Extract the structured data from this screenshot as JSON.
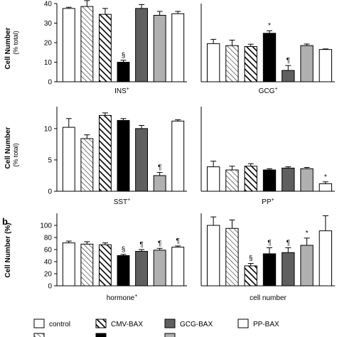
{
  "conditions": [
    {
      "key": "control",
      "label": "control",
      "fill": "#ffffff",
      "pattern": "none"
    },
    {
      "key": "hatch",
      "label": "",
      "fill": "#ffffff",
      "pattern": "thin-hatch"
    },
    {
      "key": "cmv",
      "label": "CMV-BAX",
      "fill": "#ffffff",
      "pattern": "thick-hatch"
    },
    {
      "key": "ins",
      "label": "",
      "fill": "#000000",
      "pattern": "none"
    },
    {
      "key": "gcg",
      "label": "GCG-BAX",
      "fill": "#5f5f5f",
      "pattern": "none"
    },
    {
      "key": "sst",
      "label": "",
      "fill": "#b0b0b0",
      "pattern": "none"
    },
    {
      "key": "pp",
      "label": "PP-BAX",
      "fill": "#ffffff",
      "pattern": "none"
    }
  ],
  "chart_data": [
    {
      "type": "bar",
      "id": "ins",
      "panel_letter": "",
      "xlabel": "INS",
      "xlabel_sup": "+",
      "ylabel": "Cell Number",
      "ylabel_sub": "(% total)",
      "ylim": [
        0,
        40
      ],
      "yticks": [
        0,
        10,
        20,
        30,
        40
      ],
      "values": [
        37.5,
        38.5,
        34.5,
        10.0,
        37.5,
        34.0,
        34.8
      ],
      "errors": [
        0.6,
        3.0,
        3.0,
        1.0,
        2.0,
        2.0,
        1.2
      ],
      "marks": [
        "",
        "",
        "",
        "§",
        "",
        "",
        ""
      ]
    },
    {
      "type": "bar",
      "id": "gcg",
      "panel_letter": "",
      "xlabel": "GCG",
      "xlabel_sup": "+",
      "ylabel": "",
      "ylabel_sub": "",
      "ylim": [
        0,
        40
      ],
      "yticks": [],
      "values": [
        19.5,
        18.5,
        18.0,
        24.8,
        5.8,
        18.5,
        16.5
      ],
      "errors": [
        2.2,
        2.8,
        1.2,
        1.3,
        2.5,
        0.8,
        0.3
      ],
      "marks": [
        "",
        "",
        "",
        "*",
        "¶",
        "",
        ""
      ]
    },
    {
      "type": "bar",
      "id": "sst",
      "panel_letter": "",
      "xlabel": "SST",
      "xlabel_sup": "+",
      "ylabel": "Cell Number",
      "ylabel_sub": "(% total)",
      "ylim": [
        0,
        13.5
      ],
      "yticks": [
        0,
        5,
        10
      ],
      "values": [
        10.2,
        8.4,
        12.1,
        11.3,
        10.0,
        2.5,
        11.2
      ],
      "errors": [
        1.4,
        0.6,
        0.4,
        0.3,
        0.5,
        0.5,
        0.2
      ],
      "marks": [
        "",
        "",
        "",
        "",
        "",
        "¶",
        ""
      ]
    },
    {
      "type": "bar",
      "id": "pp",
      "panel_letter": "",
      "xlabel": "PP",
      "xlabel_sup": "+",
      "ylabel": "",
      "ylabel_sub": "",
      "ylim": [
        0,
        13.5
      ],
      "yticks": [],
      "values": [
        3.9,
        3.4,
        4.0,
        3.4,
        3.7,
        3.6,
        1.2
      ],
      "errors": [
        0.9,
        0.6,
        0.4,
        0.2,
        0.2,
        0.2,
        0.3
      ],
      "marks": [
        "",
        "",
        "",
        "",
        "",
        "",
        "*"
      ]
    },
    {
      "type": "bar",
      "id": "hormone",
      "panel_letter": "b",
      "xlabel": "hormone",
      "xlabel_sup": "+",
      "ylabel": "Cell Number (%)",
      "ylabel_sub": "",
      "ylim": [
        0,
        120
      ],
      "yticks": [
        0,
        20,
        40,
        60,
        80,
        100
      ],
      "values": [
        71,
        69,
        68,
        50,
        57,
        59,
        64
      ],
      "errors": [
        3,
        4,
        3,
        2,
        3,
        3,
        2
      ],
      "marks": [
        "",
        "",
        "",
        "§",
        "¶",
        "¶",
        "¶"
      ]
    },
    {
      "type": "bar",
      "id": "cellnum",
      "panel_letter": "",
      "xlabel": "cell number",
      "xlabel_sup": "",
      "ylabel": "",
      "ylabel_sub": "",
      "ylim": [
        0,
        120
      ],
      "yticks": [],
      "values": [
        100,
        95,
        33,
        53,
        55,
        67,
        91
      ],
      "errors": [
        14,
        14,
        4,
        10,
        8,
        12,
        25
      ],
      "marks": [
        "",
        "",
        "§",
        "¶",
        "¶",
        "*",
        ""
      ]
    }
  ]
}
